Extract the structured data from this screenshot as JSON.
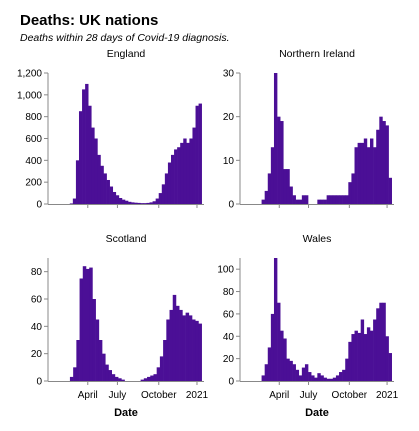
{
  "title": "Deaths: UK nations",
  "subtitle": "Deaths within 28 days of Covid-19 diagnosis.",
  "colors": {
    "bar": "#4b0f96",
    "axis": "#888888"
  },
  "chart_data": [
    {
      "type": "bar",
      "title": "England",
      "ylim": [
        0,
        1200
      ],
      "yticks": [
        0,
        200,
        400,
        600,
        800,
        1000,
        1200
      ],
      "ytick_labels": [
        "0",
        "200",
        "400",
        "600",
        "800",
        "1,000",
        "1,200"
      ],
      "xtick_labels": [
        "April",
        "July",
        "October",
        "2021"
      ],
      "xlabel": "",
      "weekly_values": [
        0,
        5,
        50,
        400,
        850,
        1050,
        1100,
        900,
        700,
        600,
        450,
        350,
        280,
        220,
        160,
        110,
        80,
        55,
        40,
        30,
        20,
        15,
        12,
        10,
        8,
        8,
        10,
        15,
        25,
        50,
        100,
        180,
        280,
        380,
        450,
        500,
        520,
        560,
        600,
        560,
        600,
        700,
        900,
        920
      ]
    },
    {
      "type": "bar",
      "title": "Northern Ireland",
      "ylim": [
        0,
        30
      ],
      "yticks": [
        0,
        10,
        20,
        30
      ],
      "ytick_labels": [
        "0",
        "10",
        "20",
        "30"
      ],
      "xtick_labels": [
        "April",
        "July",
        "October",
        "2021"
      ],
      "xlabel": "",
      "weekly_values": [
        0,
        1,
        3,
        7,
        13,
        30,
        20,
        19,
        8,
        8,
        4,
        2,
        1,
        1,
        2,
        2,
        0,
        0,
        0,
        1,
        1,
        1,
        2,
        2,
        2,
        2,
        2,
        2,
        2,
        5,
        7,
        13,
        14,
        14,
        15,
        13,
        15,
        13,
        17,
        20,
        19,
        18,
        6
      ]
    },
    {
      "type": "bar",
      "title": "Scotland",
      "ylim": [
        0,
        90
      ],
      "yticks": [
        0,
        20,
        40,
        60,
        80
      ],
      "ytick_labels": [
        "0",
        "20",
        "40",
        "60",
        "80"
      ],
      "xtick_labels": [
        "April",
        "July",
        "October",
        "2021"
      ],
      "xlabel": "Date",
      "weekly_values": [
        0,
        3,
        10,
        30,
        75,
        84,
        82,
        83,
        60,
        45,
        30,
        20,
        12,
        8,
        5,
        3,
        2,
        1,
        0,
        0,
        0,
        0,
        0,
        1,
        2,
        3,
        4,
        5,
        10,
        18,
        30,
        45,
        52,
        63,
        55,
        52,
        48,
        50,
        48,
        45,
        44,
        42
      ]
    },
    {
      "type": "bar",
      "title": "Wales",
      "ylim": [
        0,
        110
      ],
      "yticks": [
        0,
        20,
        40,
        60,
        80,
        100
      ],
      "ytick_labels": [
        "0",
        "20",
        "40",
        "60",
        "80",
        "100"
      ],
      "xtick_labels": [
        "April",
        "July",
        "October",
        "2021"
      ],
      "xlabel": "Date",
      "weekly_values": [
        0,
        5,
        15,
        30,
        60,
        110,
        70,
        45,
        38,
        20,
        18,
        15,
        10,
        5,
        12,
        15,
        8,
        5,
        3,
        7,
        5,
        3,
        2,
        2,
        3,
        5,
        8,
        10,
        20,
        35,
        42,
        45,
        43,
        55,
        42,
        48,
        45,
        55,
        65,
        70,
        70,
        40,
        25
      ]
    }
  ]
}
